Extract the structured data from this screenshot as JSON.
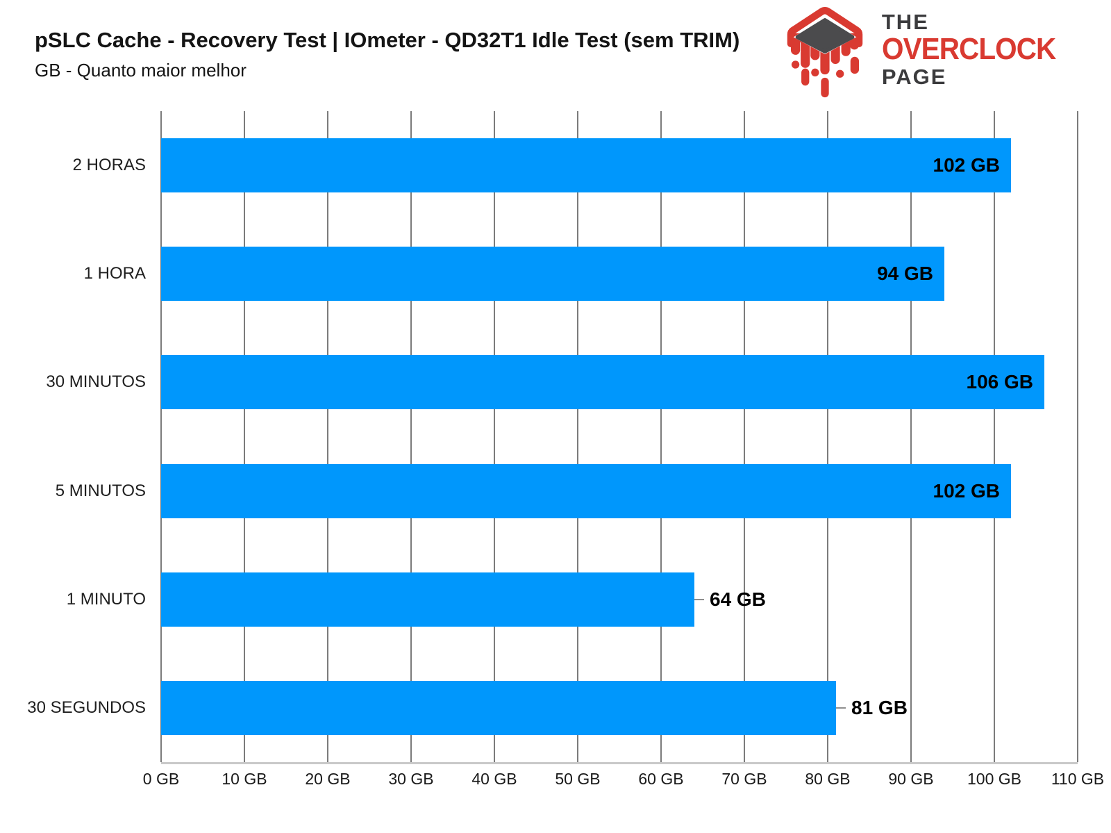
{
  "header": {
    "title": "pSLC Cache - Recovery Test | IOmeter - QD32T1 Idle Test (sem TRIM)",
    "subtitle": "GB - Quanto maior melhor"
  },
  "logo": {
    "line1": "THE",
    "line2": "OVERCLOCK",
    "line3": "PAGE",
    "red": "#d93a31",
    "dark": "#3b3b3d",
    "chip_gray": "#4b4b4d"
  },
  "chart_data": {
    "type": "bar",
    "orientation": "horizontal",
    "title": "pSLC Cache - Recovery Test | IOmeter - QD32T1 Idle Test (sem TRIM)",
    "subtitle": "GB - Quanto maior melhor",
    "categories": [
      "2 HORAS",
      "1 HORA",
      "30 MINUTOS",
      "5 MINUTOS",
      "1 MINUTO",
      "30 SEGUNDOS"
    ],
    "values": [
      102,
      94,
      106,
      102,
      64,
      81
    ],
    "value_labels": [
      "102 GB",
      "94 GB",
      "106 GB",
      "102 GB",
      "64 GB",
      "81 GB"
    ],
    "label_positions": [
      "inside",
      "inside",
      "inside",
      "inside",
      "outside",
      "outside"
    ],
    "unit": "GB",
    "xlim": [
      0,
      110
    ],
    "x_tick_step": 10,
    "x_ticks": [
      "0 GB",
      "10 GB",
      "20 GB",
      "30 GB",
      "40 GB",
      "50 GB",
      "60 GB",
      "70 GB",
      "80 GB",
      "90 GB",
      "100 GB",
      "110 GB"
    ],
    "grid": true,
    "legend": false,
    "bar_color": "#0097fc",
    "gridline_color": "#7b7b7b",
    "axis_line_color": "#c9c9c9",
    "value_label_color": "#000000",
    "category_label_color": "#1f1f1f"
  }
}
